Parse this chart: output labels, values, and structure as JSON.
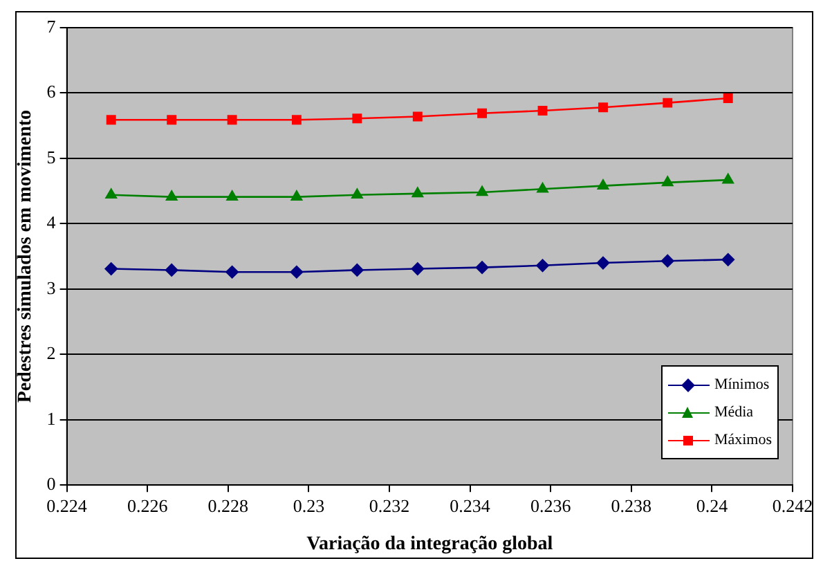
{
  "chart_data": {
    "type": "line",
    "xlabel": "Variação da integração global",
    "ylabel": "Pedestres simulados em movimento",
    "x": [
      0.2251,
      0.2266,
      0.2281,
      0.2297,
      0.2312,
      0.2327,
      0.2343,
      0.2358,
      0.2373,
      0.2389,
      0.2404
    ],
    "series": [
      {
        "name": "Mínimos",
        "color": "#000080",
        "marker": "diamond",
        "values": [
          3.31,
          3.29,
          3.26,
          3.26,
          3.29,
          3.31,
          3.33,
          3.36,
          3.4,
          3.43,
          3.45
        ]
      },
      {
        "name": "Média",
        "color": "#008000",
        "marker": "triangle",
        "values": [
          4.44,
          4.41,
          4.41,
          4.41,
          4.44,
          4.46,
          4.48,
          4.53,
          4.58,
          4.63,
          4.67
        ]
      },
      {
        "name": "Máximos",
        "color": "#ff0000",
        "marker": "square",
        "values": [
          5.59,
          5.59,
          5.59,
          5.59,
          5.61,
          5.64,
          5.69,
          5.73,
          5.78,
          5.85,
          5.92
        ]
      }
    ],
    "xlim": [
      0.224,
      0.242
    ],
    "xticks": [
      0.224,
      0.226,
      0.228,
      0.23,
      0.232,
      0.234,
      0.236,
      0.238,
      0.24,
      0.242
    ],
    "ylim": [
      0,
      7
    ],
    "yticks": [
      0,
      1,
      2,
      3,
      4,
      5,
      6,
      7
    ],
    "grid": "y",
    "legend": "bottom right"
  }
}
